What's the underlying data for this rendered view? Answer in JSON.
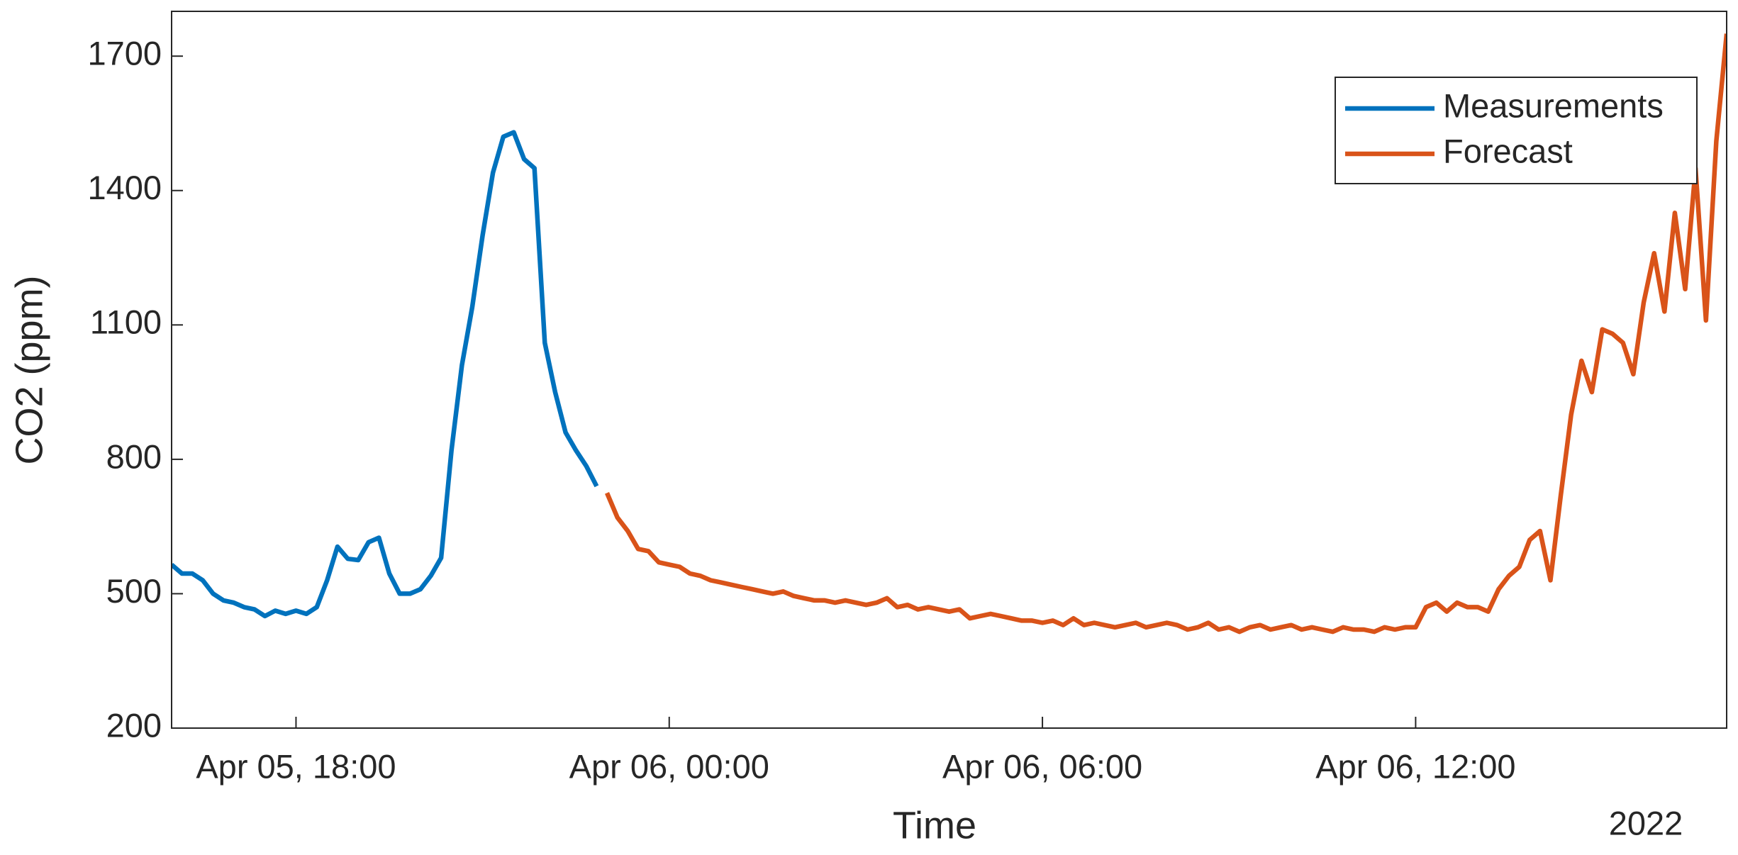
{
  "chart_data": {
    "type": "line",
    "ylabel": "CO2 (ppm)",
    "xlabel": "Time",
    "x_secondary_label": "2022",
    "xlim": [
      "2022-04-05T16:00",
      "2022-04-06T17:00"
    ],
    "xticks": [
      {
        "value": "2022-04-05T18:00",
        "label": "Apr 05, 18:00"
      },
      {
        "value": "2022-04-06T00:00",
        "label": "Apr 06, 00:00"
      },
      {
        "value": "2022-04-06T06:00",
        "label": "Apr 06, 06:00"
      },
      {
        "value": "2022-04-06T12:00",
        "label": "Apr 06, 12:00"
      }
    ],
    "ylim": [
      200,
      1800
    ],
    "yticks": [
      200,
      500,
      800,
      1100,
      1400,
      1700
    ],
    "grid": false,
    "legend": "northeast",
    "series": [
      {
        "name": "Measurements",
        "color": "#0072BD",
        "x": [
          "2022-04-05T16:00",
          "2022-04-05T16:10",
          "2022-04-05T16:20",
          "2022-04-05T16:30",
          "2022-04-05T16:40",
          "2022-04-05T16:50",
          "2022-04-05T17:00",
          "2022-04-05T17:10",
          "2022-04-05T17:20",
          "2022-04-05T17:30",
          "2022-04-05T17:40",
          "2022-04-05T17:50",
          "2022-04-05T18:00",
          "2022-04-05T18:10",
          "2022-04-05T18:20",
          "2022-04-05T18:30",
          "2022-04-05T18:40",
          "2022-04-05T18:50",
          "2022-04-05T19:00",
          "2022-04-05T19:10",
          "2022-04-05T19:20",
          "2022-04-05T19:30",
          "2022-04-05T19:40",
          "2022-04-05T19:50",
          "2022-04-05T20:00",
          "2022-04-05T20:10",
          "2022-04-05T20:20",
          "2022-04-05T20:30",
          "2022-04-05T20:40",
          "2022-04-05T20:50",
          "2022-04-05T21:00",
          "2022-04-05T21:10",
          "2022-04-05T21:20",
          "2022-04-05T21:30",
          "2022-04-05T21:40",
          "2022-04-05T21:50",
          "2022-04-05T22:00",
          "2022-04-05T22:10",
          "2022-04-05T22:20",
          "2022-04-05T22:30",
          "2022-04-05T22:40",
          "2022-04-05T22:50"
        ],
        "values": [
          565,
          545,
          545,
          530,
          500,
          485,
          480,
          470,
          465,
          450,
          462,
          455,
          462,
          455,
          470,
          530,
          605,
          578,
          575,
          615,
          625,
          545,
          500,
          500,
          510,
          540,
          580,
          820,
          1010,
          1140,
          1300,
          1440,
          1520,
          1530,
          1470,
          1450,
          1060,
          950,
          860,
          820,
          785,
          740
        ]
      },
      {
        "name": "Forecast",
        "color": "#D95319",
        "x": [
          "2022-04-05T23:00",
          "2022-04-05T23:10",
          "2022-04-05T23:20",
          "2022-04-05T23:30",
          "2022-04-05T23:40",
          "2022-04-05T23:50",
          "2022-04-06T00:00",
          "2022-04-06T00:10",
          "2022-04-06T00:20",
          "2022-04-06T00:30",
          "2022-04-06T00:40",
          "2022-04-06T00:50",
          "2022-04-06T01:00",
          "2022-04-06T01:10",
          "2022-04-06T01:20",
          "2022-04-06T01:30",
          "2022-04-06T01:40",
          "2022-04-06T01:50",
          "2022-04-06T02:00",
          "2022-04-06T02:10",
          "2022-04-06T02:20",
          "2022-04-06T02:30",
          "2022-04-06T02:40",
          "2022-04-06T02:50",
          "2022-04-06T03:00",
          "2022-04-06T03:10",
          "2022-04-06T03:20",
          "2022-04-06T03:30",
          "2022-04-06T03:40",
          "2022-04-06T03:50",
          "2022-04-06T04:00",
          "2022-04-06T04:10",
          "2022-04-06T04:20",
          "2022-04-06T04:30",
          "2022-04-06T04:40",
          "2022-04-06T04:50",
          "2022-04-06T05:00",
          "2022-04-06T05:10",
          "2022-04-06T05:20",
          "2022-04-06T05:30",
          "2022-04-06T05:40",
          "2022-04-06T05:50",
          "2022-04-06T06:00",
          "2022-04-06T06:10",
          "2022-04-06T06:20",
          "2022-04-06T06:30",
          "2022-04-06T06:40",
          "2022-04-06T06:50",
          "2022-04-06T07:00",
          "2022-04-06T07:10",
          "2022-04-06T07:20",
          "2022-04-06T07:30",
          "2022-04-06T07:40",
          "2022-04-06T07:50",
          "2022-04-06T08:00",
          "2022-04-06T08:10",
          "2022-04-06T08:20",
          "2022-04-06T08:30",
          "2022-04-06T08:40",
          "2022-04-06T08:50",
          "2022-04-06T09:00",
          "2022-04-06T09:10",
          "2022-04-06T09:20",
          "2022-04-06T09:30",
          "2022-04-06T09:40",
          "2022-04-06T09:50",
          "2022-04-06T10:00",
          "2022-04-06T10:10",
          "2022-04-06T10:20",
          "2022-04-06T10:30",
          "2022-04-06T10:40",
          "2022-04-06T10:50",
          "2022-04-06T11:00",
          "2022-04-06T11:10",
          "2022-04-06T11:20",
          "2022-04-06T11:30",
          "2022-04-06T11:40",
          "2022-04-06T11:50",
          "2022-04-06T12:00",
          "2022-04-06T12:10",
          "2022-04-06T12:20",
          "2022-04-06T12:30",
          "2022-04-06T12:40",
          "2022-04-06T12:50",
          "2022-04-06T13:00",
          "2022-04-06T13:10",
          "2022-04-06T13:20",
          "2022-04-06T13:30",
          "2022-04-06T13:40",
          "2022-04-06T13:50",
          "2022-04-06T14:00",
          "2022-04-06T14:10",
          "2022-04-06T14:20",
          "2022-04-06T14:30",
          "2022-04-06T14:40",
          "2022-04-06T14:50",
          "2022-04-06T15:00",
          "2022-04-06T15:10",
          "2022-04-06T15:20",
          "2022-04-06T15:30",
          "2022-04-06T15:40",
          "2022-04-06T15:50",
          "2022-04-06T16:00",
          "2022-04-06T16:10",
          "2022-04-06T16:20",
          "2022-04-06T16:30",
          "2022-04-06T16:40",
          "2022-04-06T16:50",
          "2022-04-06T17:00"
        ],
        "values": [
          725,
          670,
          640,
          600,
          595,
          570,
          565,
          560,
          545,
          540,
          530,
          525,
          520,
          515,
          510,
          505,
          500,
          505,
          495,
          490,
          485,
          485,
          480,
          485,
          480,
          475,
          480,
          490,
          470,
          475,
          465,
          470,
          465,
          460,
          465,
          445,
          450,
          455,
          450,
          445,
          440,
          440,
          435,
          440,
          430,
          445,
          430,
          435,
          430,
          425,
          430,
          435,
          425,
          430,
          435,
          430,
          420,
          425,
          435,
          420,
          425,
          415,
          425,
          430,
          420,
          425,
          430,
          420,
          425,
          420,
          415,
          425,
          420,
          420,
          415,
          425,
          420,
          425,
          425,
          470,
          480,
          460,
          480,
          470,
          470,
          460,
          510,
          540,
          560,
          620,
          640,
          530,
          720,
          900,
          1020,
          950,
          1090,
          1080,
          1060,
          990,
          1150,
          1260,
          1130,
          1350,
          1180,
          1450,
          1110,
          1510,
          1750
        ]
      }
    ]
  }
}
